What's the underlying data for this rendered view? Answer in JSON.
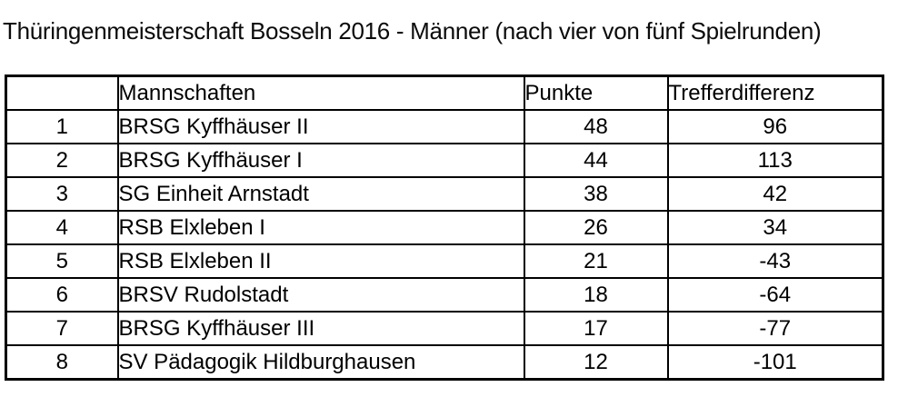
{
  "title": "Thüringenmeisterschaft Bosseln 2016 - Männer (nach vier von fünf Spielrunden)",
  "table": {
    "headers": {
      "rank": "",
      "team": "Mannschaften",
      "points": "Punkte",
      "diff": "Trefferdifferenz"
    },
    "rows": [
      {
        "rank": "1",
        "team": "BRSG Kyffhäuser II",
        "points": "48",
        "diff": "96"
      },
      {
        "rank": "2",
        "team": "BRSG Kyffhäuser I",
        "points": "44",
        "diff": "113"
      },
      {
        "rank": "3",
        "team": "SG Einheit Arnstadt",
        "points": "38",
        "diff": "42"
      },
      {
        "rank": "4",
        "team": "RSB Elxleben I",
        "points": "26",
        "diff": "34"
      },
      {
        "rank": "5",
        "team": "RSB Elxleben II",
        "points": "21",
        "diff": "-43"
      },
      {
        "rank": "6",
        "team": "BRSV Rudolstadt",
        "points": "18",
        "diff": "-64"
      },
      {
        "rank": "7",
        "team": "BRSG Kyffhäuser III",
        "points": "17",
        "diff": "-77"
      },
      {
        "rank": "8",
        "team": "SV Pädagogik Hildburghausen",
        "points": "12",
        "diff": "-101"
      }
    ]
  }
}
